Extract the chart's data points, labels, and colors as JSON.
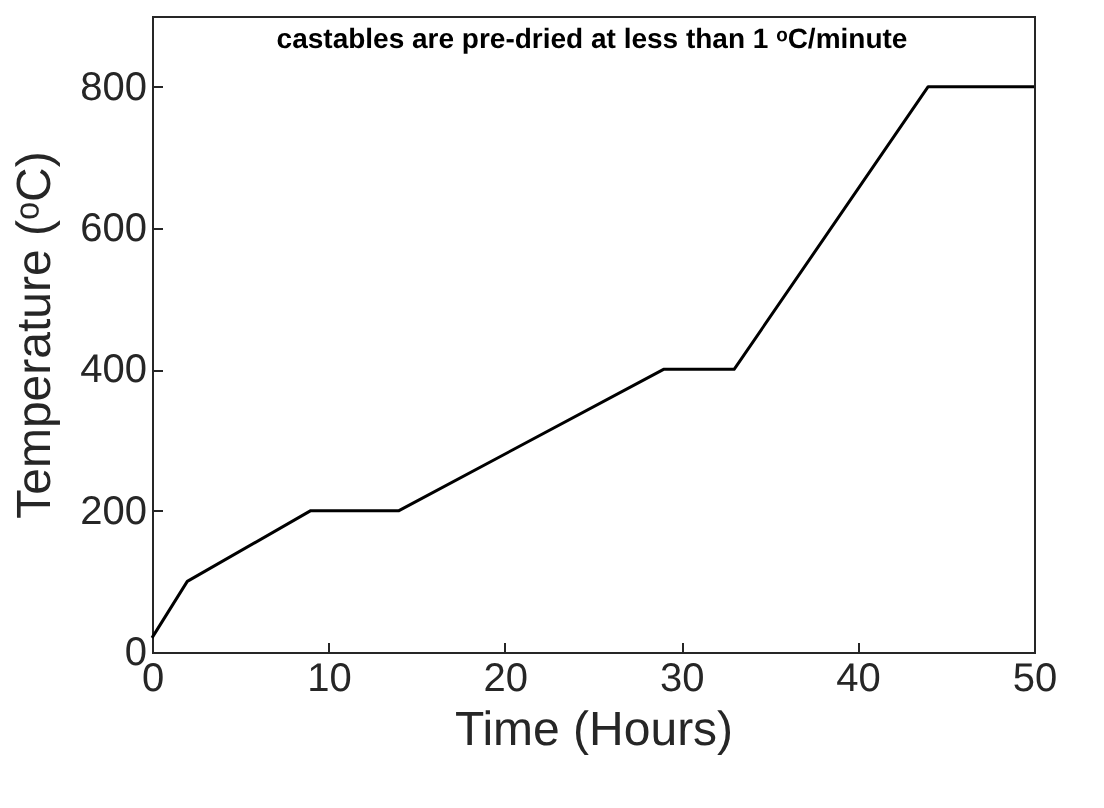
{
  "chart_data": {
    "type": "line",
    "xlabel": "Time (Hours)",
    "ylabel": "Temperature (ᵒC)",
    "annotations": [
      "castables are pre-dried at less than 1 ᵒC/minute"
    ],
    "x": [
      0,
      2,
      9,
      14,
      29,
      33,
      44,
      50
    ],
    "series": [
      {
        "color": "#000000",
        "values": [
          20,
          100,
          200,
          200,
          400,
          400,
          800,
          800
        ]
      }
    ],
    "xlim": [
      0,
      50
    ],
    "xticks": [
      0,
      10,
      20,
      30,
      40,
      50
    ],
    "ylim": [
      0,
      900
    ],
    "yticks": [
      0,
      200,
      400,
      600,
      800
    ],
    "grid": false,
    "marker": "none",
    "line_style": "solid"
  }
}
